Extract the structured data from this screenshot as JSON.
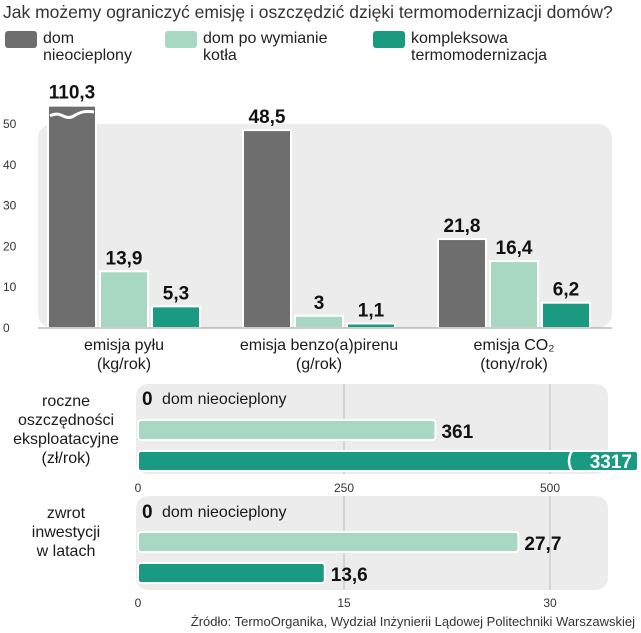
{
  "title": "Jak możemy ograniczyć emisję i oszczędzić dzięki termomodernizacji domów?",
  "legend": [
    {
      "label": "dom\nnieocieplony",
      "color": "#6e6e6e"
    },
    {
      "label": "dom po wymianie\nkotła",
      "color": "#a8d8c2"
    },
    {
      "label": "kompleksowa\ntermomodernizacja",
      "color": "#1a9a80"
    }
  ],
  "source": "Źródło: TermoOrganika, Wydział Inżynierii Lądowej Politechniki Warszawskiej",
  "chart_data": [
    {
      "type": "bar",
      "categories": [
        "emisja pyłu\n(kg/rok)",
        "emisja benzo(a)pirenu\n(g/rok)",
        "emisja CO₂\n(tony/rok)"
      ],
      "series": [
        {
          "name": "dom nieocieplony",
          "values": [
            110.3,
            48.5,
            21.8
          ],
          "labels": [
            "110,3",
            "48,5",
            "21,8"
          ]
        },
        {
          "name": "dom po wymianie kotła",
          "values": [
            13.9,
            3,
            16.4
          ],
          "labels": [
            "13,9",
            "3",
            "16,4"
          ]
        },
        {
          "name": "kompleksowa termomodernizacja",
          "values": [
            5.3,
            1.1,
            6.2
          ],
          "labels": [
            "5,3",
            "1,1",
            "6,2"
          ]
        }
      ],
      "ylim": [
        0,
        50
      ],
      "yticks": [
        "0",
        "10",
        "20",
        "30",
        "40",
        "50"
      ],
      "axis_break": true
    },
    {
      "type": "bar",
      "orientation": "horizontal",
      "category": "roczne\noszczędności\neksploatacyjne\n(zł/rok)",
      "series": [
        {
          "name": "dom nieocieplony",
          "value": 0,
          "label": "0",
          "note": "dom nieocieplony"
        },
        {
          "name": "dom po wymianie kotła",
          "value": 361,
          "label": "361"
        },
        {
          "name": "kompleksowa termomodernizacja",
          "value": 3317,
          "label": "3317"
        }
      ],
      "xlim": [
        0,
        550
      ],
      "xticks": [
        "0",
        "250",
        "500"
      ],
      "axis_break": true
    },
    {
      "type": "bar",
      "orientation": "horizontal",
      "category": "zwrot\ninwestycji\nw latach",
      "series": [
        {
          "name": "dom nieocieplony",
          "value": 0,
          "label": "0",
          "note": "dom nieocieplony"
        },
        {
          "name": "dom po wymianie kotła",
          "value": 27.7,
          "label": "27,7"
        },
        {
          "name": "kompleksowa termomodernizacja",
          "value": 13.6,
          "label": "13,6"
        }
      ],
      "xlim": [
        0,
        32
      ],
      "xticks": [
        "0",
        "15",
        "30"
      ]
    }
  ]
}
